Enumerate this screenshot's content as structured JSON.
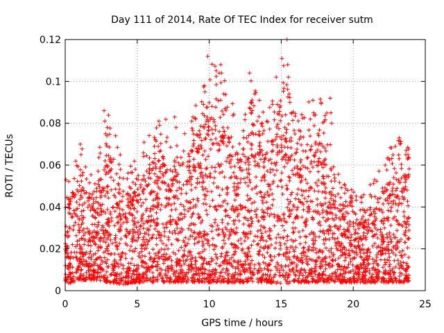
{
  "chart_data": {
    "type": "scatter",
    "title": "Day 111 of 2014, Rate Of TEC Index for receiver sutm",
    "xlabel": "GPS time / hours",
    "ylabel": "ROTI / TECUs",
    "xlim": [
      0,
      25
    ],
    "ylim": [
      0,
      0.12
    ],
    "x_ticks": [
      0,
      5,
      10,
      15,
      20,
      25
    ],
    "x_tick_labels": [
      "0",
      "5",
      "10",
      "15",
      "20",
      "25"
    ],
    "y_ticks": [
      0,
      0.02,
      0.04,
      0.06,
      0.08,
      0.1,
      0.12
    ],
    "y_tick_labels": [
      "0",
      "0.02",
      "0.04",
      "0.06",
      "0.08",
      "0.1",
      "0.12"
    ],
    "grid": true,
    "marker": "+",
    "series": [
      {
        "name": "ROTI",
        "color": "#ff0000",
        "data_gaps_hours": [
          [
            4.05,
            4.15
          ]
        ],
        "time_range_hours": [
          0,
          23.9
        ],
        "hourly_envelope": [
          {
            "x": 0,
            "low": 0.003,
            "high": 0.053
          },
          {
            "x": 1,
            "low": 0.005,
            "high": 0.07
          },
          {
            "x": 2,
            "low": 0.005,
            "high": 0.06
          },
          {
            "x": 3,
            "low": 0.004,
            "high": 0.086
          },
          {
            "x": 4,
            "low": 0.003,
            "high": 0.062
          },
          {
            "x": 5,
            "low": 0.004,
            "high": 0.063
          },
          {
            "x": 6,
            "low": 0.004,
            "high": 0.081
          },
          {
            "x": 7,
            "low": 0.004,
            "high": 0.083
          },
          {
            "x": 8,
            "low": 0.004,
            "high": 0.07
          },
          {
            "x": 9,
            "low": 0.004,
            "high": 0.095
          },
          {
            "x": 10,
            "low": 0.004,
            "high": 0.112
          },
          {
            "x": 11,
            "low": 0.004,
            "high": 0.108
          },
          {
            "x": 12,
            "low": 0.004,
            "high": 0.079
          },
          {
            "x": 13,
            "low": 0.004,
            "high": 0.104
          },
          {
            "x": 14,
            "low": 0.004,
            "high": 0.081
          },
          {
            "x": 15,
            "low": 0.003,
            "high": 0.12
          },
          {
            "x": 16,
            "low": 0.004,
            "high": 0.085
          },
          {
            "x": 17,
            "low": 0.004,
            "high": 0.092
          },
          {
            "x": 18,
            "low": 0.004,
            "high": 0.092
          },
          {
            "x": 19,
            "low": 0.004,
            "high": 0.055
          },
          {
            "x": 20,
            "low": 0.004,
            "high": 0.048
          },
          {
            "x": 21,
            "low": 0.004,
            "high": 0.048
          },
          {
            "x": 22,
            "low": 0.004,
            "high": 0.063
          },
          {
            "x": 23,
            "low": 0.004,
            "high": 0.073
          }
        ],
        "outliers": [
          {
            "x": 0.05,
            "y": 0.053
          },
          {
            "x": 1.05,
            "y": 0.07
          },
          {
            "x": 1.1,
            "y": 0.065
          },
          {
            "x": 2.7,
            "y": 0.086
          },
          {
            "x": 2.75,
            "y": 0.081
          },
          {
            "x": 2.8,
            "y": 0.075
          },
          {
            "x": 3.5,
            "y": 0.074
          },
          {
            "x": 6.5,
            "y": 0.081
          },
          {
            "x": 6.55,
            "y": 0.079
          },
          {
            "x": 7.6,
            "y": 0.083
          },
          {
            "x": 7.7,
            "y": 0.078
          },
          {
            "x": 9.6,
            "y": 0.089
          },
          {
            "x": 9.7,
            "y": 0.095
          },
          {
            "x": 9.9,
            "y": 0.112
          },
          {
            "x": 10.8,
            "y": 0.108
          },
          {
            "x": 10.85,
            "y": 0.104
          },
          {
            "x": 11.0,
            "y": 0.094
          },
          {
            "x": 11.1,
            "y": 0.087
          },
          {
            "x": 12.8,
            "y": 0.104
          },
          {
            "x": 12.85,
            "y": 0.087
          },
          {
            "x": 12.9,
            "y": 0.085
          },
          {
            "x": 14.0,
            "y": 0.081
          },
          {
            "x": 15.4,
            "y": 0.12
          },
          {
            "x": 15.45,
            "y": 0.108
          },
          {
            "x": 15.5,
            "y": 0.102
          },
          {
            "x": 15.55,
            "y": 0.094
          },
          {
            "x": 15.6,
            "y": 0.09
          },
          {
            "x": 15.7,
            "y": 0.085
          },
          {
            "x": 17.2,
            "y": 0.091
          },
          {
            "x": 17.25,
            "y": 0.085
          },
          {
            "x": 18.4,
            "y": 0.092
          },
          {
            "x": 18.45,
            "y": 0.085
          },
          {
            "x": 18.5,
            "y": 0.08
          },
          {
            "x": 22.4,
            "y": 0.063
          },
          {
            "x": 23.2,
            "y": 0.073
          },
          {
            "x": 23.25,
            "y": 0.07
          },
          {
            "x": 23.8,
            "y": 0.065
          }
        ]
      }
    ]
  }
}
